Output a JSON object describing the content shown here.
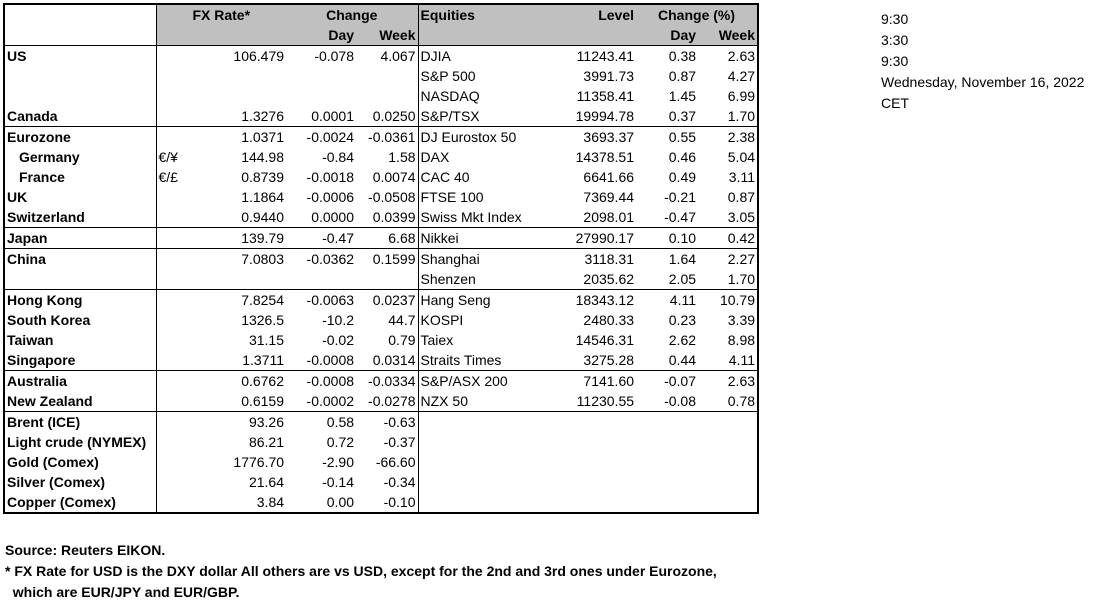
{
  "headers": {
    "fx_rate": "FX Rate*",
    "change": "Change",
    "day": "Day",
    "week": "Week",
    "equities": "Equities",
    "level": "Level",
    "change_pct": "Change (%)",
    "eq_day": "Day",
    "eq_week": "Week"
  },
  "rows": [
    {
      "region": "US",
      "sub": "",
      "rate": "106.479",
      "day": "-0.078",
      "week": "4.067",
      "index": "DJIA",
      "level": "11243.41",
      "eq_day": "0.38",
      "eq_week": "2.63"
    },
    {
      "region": "",
      "sub": "",
      "rate": "",
      "day": "",
      "week": "",
      "index": "S&P 500",
      "level": "3991.73",
      "eq_day": "0.87",
      "eq_week": "4.27"
    },
    {
      "region": "",
      "sub": "",
      "rate": "",
      "day": "",
      "week": "",
      "index": "NASDAQ",
      "level": "11358.41",
      "eq_day": "1.45",
      "eq_week": "6.99"
    },
    {
      "region": "Canada",
      "sub": "",
      "rate": "1.3276",
      "day": "0.0001",
      "week": "0.0250",
      "index": "S&P/TSX",
      "level": "19994.78",
      "eq_day": "0.37",
      "eq_week": "1.70"
    },
    {
      "region": "Eurozone",
      "sub": "",
      "rate": "1.0371",
      "day": "-0.0024",
      "week": "-0.0361",
      "index": "DJ Eurostox 50",
      "level": "3693.37",
      "eq_day": "0.55",
      "eq_week": "2.38"
    },
    {
      "region": "Germany",
      "sub": "€/¥",
      "rate": "144.98",
      "day": "-0.84",
      "week": "1.58",
      "index": "DAX",
      "level": "14378.51",
      "eq_day": "0.46",
      "eq_week": "5.04"
    },
    {
      "region": "France",
      "sub": "€/£",
      "rate": "0.8739",
      "day": "-0.0018",
      "week": "0.0074",
      "index": "CAC 40",
      "level": "6641.66",
      "eq_day": "0.49",
      "eq_week": "3.11"
    },
    {
      "region": "UK",
      "sub": "",
      "rate": "1.1864",
      "day": "-0.0006",
      "week": "-0.0508",
      "index": "FTSE 100",
      "level": "7369.44",
      "eq_day": "-0.21",
      "eq_week": "0.87"
    },
    {
      "region": "Switzerland",
      "sub": "",
      "rate": "0.9440",
      "day": "0.0000",
      "week": "0.0399",
      "index": "Swiss Mkt Index",
      "level": "2098.01",
      "eq_day": "-0.47",
      "eq_week": "3.05"
    },
    {
      "region": "Japan",
      "sub": "",
      "rate": "139.79",
      "day": "-0.47",
      "week": "6.68",
      "index": "Nikkei",
      "level": "27990.17",
      "eq_day": "0.10",
      "eq_week": "0.42"
    },
    {
      "region": "China",
      "sub": "",
      "rate": "7.0803",
      "day": "-0.0362",
      "week": "0.1599",
      "index": "Shanghai",
      "level": "3118.31",
      "eq_day": "1.64",
      "eq_week": "2.27"
    },
    {
      "region": "",
      "sub": "",
      "rate": "",
      "day": "",
      "week": "",
      "index": "Shenzen",
      "level": "2035.62",
      "eq_day": "2.05",
      "eq_week": "1.70"
    },
    {
      "region": "Hong Kong",
      "sub": "",
      "rate": "7.8254",
      "day": "-0.0063",
      "week": "0.0237",
      "index": "Hang Seng",
      "level": "18343.12",
      "eq_day": "4.11",
      "eq_week": "10.79"
    },
    {
      "region": "South Korea",
      "sub": "",
      "rate": "1326.5",
      "day": "-10.2",
      "week": "44.7",
      "index": "KOSPI",
      "level": "2480.33",
      "eq_day": "0.23",
      "eq_week": "3.39"
    },
    {
      "region": "Taiwan",
      "sub": "",
      "rate": "31.15",
      "day": "-0.02",
      "week": "0.79",
      "index": "Taiex",
      "level": "14546.31",
      "eq_day": "2.62",
      "eq_week": "8.98"
    },
    {
      "region": "Singapore",
      "sub": "",
      "rate": "1.3711",
      "day": "-0.0008",
      "week": "0.0314",
      "index": "Straits Times",
      "level": "3275.28",
      "eq_day": "0.44",
      "eq_week": "4.11"
    },
    {
      "region": "Australia",
      "sub": "",
      "rate": "0.6762",
      "day": "-0.0008",
      "week": "-0.0334",
      "index": "S&P/ASX  200",
      "level": "7141.60",
      "eq_day": "-0.07",
      "eq_week": "2.63"
    },
    {
      "region": "New Zealand",
      "sub": "",
      "rate": "0.6159",
      "day": "-0.0002",
      "week": "-0.0278",
      "index": "NZX 50",
      "level": "11230.55",
      "eq_day": "-0.08",
      "eq_week": "0.78"
    },
    {
      "region": "Brent (ICE)",
      "sub": "",
      "rate": "93.26",
      "day": "0.58",
      "week": "-0.63",
      "index": "",
      "level": "",
      "eq_day": "",
      "eq_week": ""
    },
    {
      "region": "Light crude (NYMEX)",
      "sub": "",
      "rate": "86.21",
      "day": "0.72",
      "week": "-0.37",
      "index": "",
      "level": "",
      "eq_day": "",
      "eq_week": ""
    },
    {
      "region": "Gold (Comex)",
      "sub": "",
      "rate": "1776.70",
      "day": "-2.90",
      "week": "-66.60",
      "index": "",
      "level": "",
      "eq_day": "",
      "eq_week": ""
    },
    {
      "region": "Silver (Comex)",
      "sub": "",
      "rate": "21.64",
      "day": "-0.14",
      "week": "-0.34",
      "index": "",
      "level": "",
      "eq_day": "",
      "eq_week": ""
    },
    {
      "region": "Copper (Comex)",
      "sub": "",
      "rate": "3.84",
      "day": "0.00",
      "week": "-0.10",
      "index": "",
      "level": "",
      "eq_day": "",
      "eq_week": ""
    }
  ],
  "notes": {
    "source": "Source:  Reuters EIKON.",
    "footnote_1": "* FX Rate for USD is the DXY dollar  All others are vs USD, except for the 2nd and 3rd ones under Eurozone,",
    "footnote_2": "  which are EUR/JPY and EUR/GBP."
  },
  "side": [
    "9:30",
    "3:30",
    "9:30",
    "Wednesday, November 16, 2022",
    "CET"
  ]
}
